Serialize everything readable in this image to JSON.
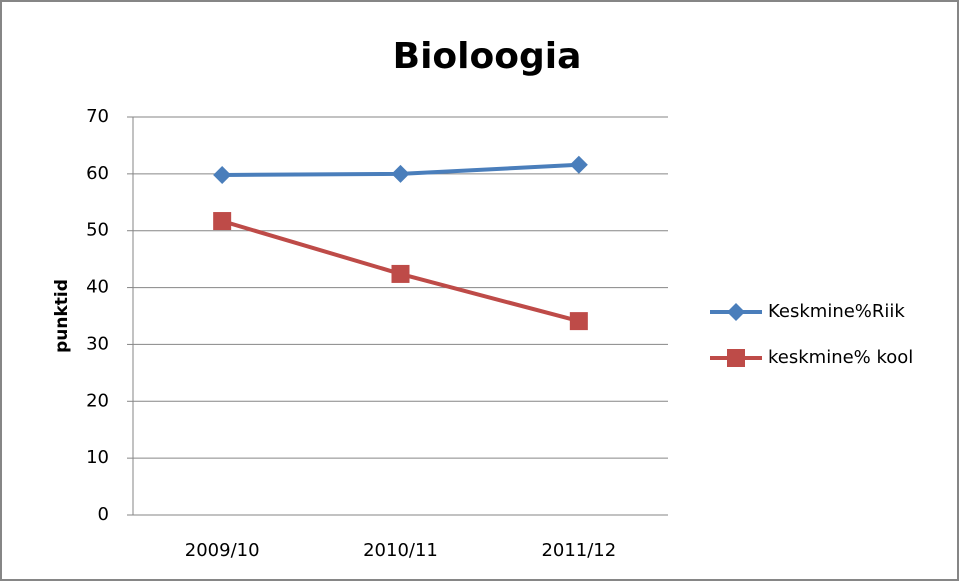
{
  "chart_data": {
    "type": "line",
    "title": "Bioloogia",
    "y_label": "punktid",
    "categories": [
      "2009/10",
      "2010/11",
      "2011/12"
    ],
    "series": [
      {
        "name": "Keskmine%Riik",
        "color": "#4a7ebb",
        "marker": "diamond",
        "values": [
          59.8,
          60,
          61.6
        ]
      },
      {
        "name": "keskmine% kool",
        "color": "#be4b48",
        "marker": "square",
        "values": [
          51.7,
          42.4,
          34.1
        ]
      }
    ],
    "ylim": [
      0,
      70
    ],
    "yticks": [
      0,
      10,
      20,
      30,
      40,
      50,
      60,
      70
    ],
    "grid": true,
    "legend": "right"
  }
}
